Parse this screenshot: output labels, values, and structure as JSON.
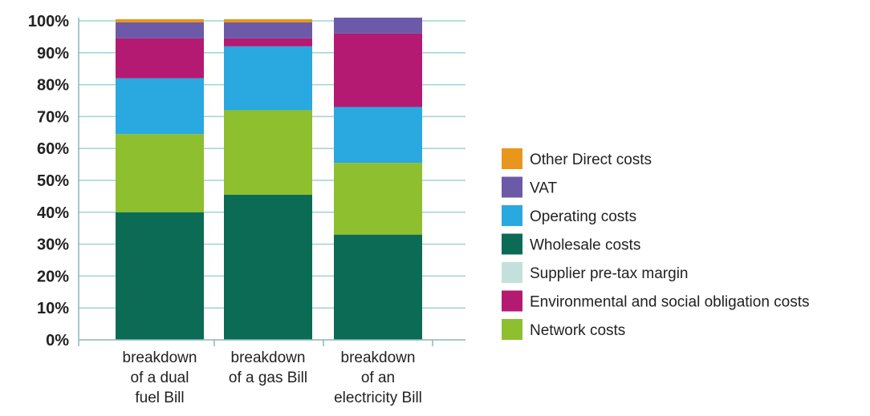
{
  "chart_data": {
    "type": "bar",
    "stacked": true,
    "title": "",
    "xlabel": "",
    "ylabel": "",
    "ylim": [
      0,
      100
    ],
    "grid": true,
    "legend_position": "right",
    "y_ticks": [
      "0%",
      "10%",
      "20%",
      "30%",
      "40%",
      "50%",
      "60%",
      "70%",
      "80%",
      "90%",
      "100%"
    ],
    "categories": [
      [
        "breakdown",
        "of a dual",
        "fuel Bill"
      ],
      [
        "breakdown",
        "of a gas Bill"
      ],
      [
        "breakdown",
        "of an",
        "electricity Bill"
      ]
    ],
    "series": [
      {
        "name": "Wholesale costs",
        "color": "#0b6b55",
        "values": [
          40,
          45.5,
          33
        ]
      },
      {
        "name": "Network costs",
        "color": "#8dbf2e",
        "values": [
          24.5,
          26.5,
          22.5
        ]
      },
      {
        "name": "Supplier pre-tax margin",
        "color": "#c4e0dc",
        "values": [
          0,
          0,
          0
        ]
      },
      {
        "name": "Operating costs",
        "color": "#2aa8e0",
        "values": [
          17.5,
          20,
          17.5
        ]
      },
      {
        "name": "Environmental and social obligation costs",
        "color": "#b41a72",
        "values": [
          12.5,
          2.5,
          23
        ]
      },
      {
        "name": "VAT",
        "color": "#6c5aa8",
        "values": [
          5,
          5,
          5
        ]
      },
      {
        "name": "Other Direct costs",
        "color": "#e8961c",
        "values": [
          1,
          1,
          0
        ]
      }
    ],
    "legend": [
      {
        "name": "Other Direct costs",
        "color": "#e8961c"
      },
      {
        "name": "VAT",
        "color": "#6c5aa8"
      },
      {
        "name": "Operating costs",
        "color": "#2aa8e0"
      },
      {
        "name": "Wholesale costs",
        "color": "#0b6b55"
      },
      {
        "name": "Supplier pre-tax margin",
        "color": "#c4e0dc"
      },
      {
        "name": "Environmental and social obligation costs",
        "color": "#b41a72"
      },
      {
        "name": "Network costs",
        "color": "#8dbf2e"
      }
    ],
    "gridline_color": "#9fd3d3",
    "axis_color": "#8ab7b7"
  }
}
